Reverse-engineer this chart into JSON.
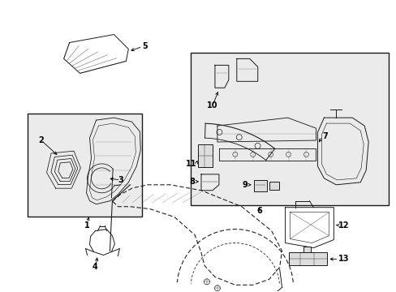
{
  "bg_color": "#ffffff",
  "line_color": "#1a1a1a",
  "box_bg": "#e8e8e8",
  "fig_width": 4.89,
  "fig_height": 3.6,
  "dpi": 100,
  "xlim": [
    0,
    489
  ],
  "ylim": [
    0,
    360
  ]
}
